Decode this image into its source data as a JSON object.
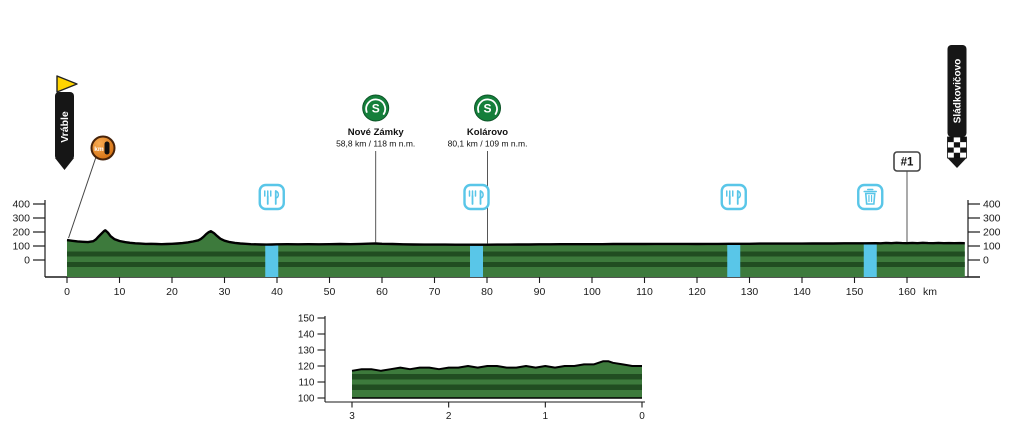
{
  "page": {
    "background": "#ffffff"
  },
  "chart_data": [
    {
      "id": "main_profile",
      "type": "area",
      "title": "",
      "xlabel": "km",
      "ylabel": "",
      "x_ticks": [
        0,
        10,
        20,
        30,
        40,
        50,
        60,
        70,
        80,
        90,
        100,
        110,
        120,
        130,
        140,
        150,
        160
      ],
      "y_ticks": [
        0,
        100,
        200,
        300,
        400
      ],
      "x_range": [
        0,
        171
      ],
      "y_range": [
        0,
        400
      ],
      "grid": false,
      "legend": "none",
      "series": [
        {
          "name": "elevation_m",
          "points": [
            [
              0,
              142
            ],
            [
              1,
              137
            ],
            [
              2,
              133
            ],
            [
              3,
              130
            ],
            [
              4,
              128
            ],
            [
              5,
              134
            ],
            [
              5.5,
              147
            ],
            [
              6,
              167
            ],
            [
              6.5,
              186
            ],
            [
              7,
              205
            ],
            [
              7.3,
              212
            ],
            [
              7.8,
              196
            ],
            [
              8.3,
              170
            ],
            [
              9,
              149
            ],
            [
              10,
              136
            ],
            [
              11,
              128
            ],
            [
              12,
              123
            ],
            [
              13,
              119
            ],
            [
              14,
              117
            ],
            [
              15,
              115
            ],
            [
              16,
              116
            ],
            [
              17,
              114
            ],
            [
              18,
              113
            ],
            [
              19,
              114
            ],
            [
              20,
              116
            ],
            [
              21,
              118
            ],
            [
              22,
              121
            ],
            [
              23,
              126
            ],
            [
              24,
              132
            ],
            [
              25,
              141
            ],
            [
              25.5,
              151
            ],
            [
              26,
              166
            ],
            [
              26.5,
              184
            ],
            [
              27,
              199
            ],
            [
              27.4,
              206
            ],
            [
              28,
              192
            ],
            [
              28.6,
              171
            ],
            [
              29.2,
              152
            ],
            [
              30,
              138
            ],
            [
              31,
              128
            ],
            [
              32,
              122
            ],
            [
              33,
              118
            ],
            [
              34,
              116
            ],
            [
              35,
              113
            ],
            [
              36,
              112
            ],
            [
              37,
              111
            ],
            [
              38,
              110
            ],
            [
              39,
              111
            ],
            [
              40,
              112
            ],
            [
              42,
              113
            ],
            [
              44,
              112
            ],
            [
              46,
              113
            ],
            [
              48,
              112
            ],
            [
              50,
              113
            ],
            [
              52,
              114
            ],
            [
              54,
              113
            ],
            [
              56,
              115
            ],
            [
              58,
              117
            ],
            [
              58.8,
              118
            ],
            [
              60,
              116
            ],
            [
              62,
              114
            ],
            [
              64,
              112
            ],
            [
              66,
              111
            ],
            [
              68,
              110
            ],
            [
              70,
              110
            ],
            [
              72,
              110
            ],
            [
              74,
              109
            ],
            [
              76,
              109
            ],
            [
              78,
              109
            ],
            [
              80.1,
              109
            ],
            [
              82,
              110
            ],
            [
              84,
              110
            ],
            [
              86,
              111
            ],
            [
              88,
              111
            ],
            [
              90,
              112
            ],
            [
              92,
              112
            ],
            [
              94,
              113
            ],
            [
              96,
              113
            ],
            [
              98,
              113
            ],
            [
              100,
              113
            ],
            [
              102,
              113
            ],
            [
              104,
              114
            ],
            [
              106,
              114
            ],
            [
              108,
              114
            ],
            [
              110,
              114
            ],
            [
              112,
              115
            ],
            [
              114,
              115
            ],
            [
              116,
              115
            ],
            [
              118,
              115
            ],
            [
              120,
              114
            ],
            [
              122,
              115
            ],
            [
              124,
              115
            ],
            [
              126,
              116
            ],
            [
              128,
              116
            ],
            [
              130,
              116
            ],
            [
              132,
              117
            ],
            [
              134,
              117
            ],
            [
              136,
              117
            ],
            [
              138,
              117
            ],
            [
              140,
              117
            ],
            [
              142,
              118
            ],
            [
              144,
              118
            ],
            [
              146,
              118
            ],
            [
              148,
              119
            ],
            [
              150,
              119
            ],
            [
              152,
              119
            ],
            [
              154,
              120
            ],
            [
              155,
              119
            ],
            [
              156,
              122
            ],
            [
              157,
              120
            ],
            [
              158,
              123
            ],
            [
              159,
              121
            ],
            [
              160,
              120
            ],
            [
              161,
              122
            ],
            [
              162,
              120
            ],
            [
              163,
              123
            ],
            [
              164,
              121
            ],
            [
              165,
              120
            ],
            [
              166,
              122
            ],
            [
              167,
              120
            ],
            [
              168,
              121
            ],
            [
              169,
              120
            ],
            [
              170,
              121
            ],
            [
              171,
              120
            ]
          ]
        }
      ]
    },
    {
      "id": "finale_inset",
      "type": "area",
      "title": "",
      "xlabel": "",
      "ylabel": "",
      "x_ticks": [
        3,
        2,
        1,
        0
      ],
      "y_ticks": [
        100,
        110,
        120,
        130,
        140,
        150
      ],
      "x_range": [
        3,
        0
      ],
      "y_range": [
        100,
        150
      ],
      "grid": false,
      "legend": "none",
      "series": [
        {
          "name": "elevation_m",
          "points": [
            [
              3,
              117
            ],
            [
              2.9,
              118
            ],
            [
              2.8,
              118
            ],
            [
              2.7,
              117
            ],
            [
              2.6,
              118
            ],
            [
              2.5,
              119
            ],
            [
              2.4,
              118
            ],
            [
              2.3,
              119
            ],
            [
              2.2,
              119
            ],
            [
              2.1,
              118
            ],
            [
              2,
              119
            ],
            [
              1.9,
              119
            ],
            [
              1.8,
              120
            ],
            [
              1.7,
              119
            ],
            [
              1.6,
              120
            ],
            [
              1.5,
              120
            ],
            [
              1.4,
              119
            ],
            [
              1.3,
              119
            ],
            [
              1.2,
              120
            ],
            [
              1.1,
              119
            ],
            [
              1,
              120
            ],
            [
              0.9,
              119
            ],
            [
              0.8,
              120
            ],
            [
              0.7,
              120
            ],
            [
              0.6,
              121
            ],
            [
              0.5,
              121
            ],
            [
              0.4,
              123
            ],
            [
              0.35,
              123
            ],
            [
              0.3,
              122
            ],
            [
              0.2,
              121
            ],
            [
              0.1,
              120
            ],
            [
              0,
              120
            ]
          ]
        }
      ]
    }
  ],
  "markers": {
    "start": {
      "label": "Vráble",
      "km": 0
    },
    "finish": {
      "label": "Sládkovičovo",
      "km": 171
    },
    "km_zero": {
      "label": "km",
      "value": "0"
    },
    "sprints": [
      {
        "name": "Nové Zámky",
        "detail": "58,8 km / 118 m n.m.",
        "km": 58.8
      },
      {
        "name": "Kolárovo",
        "detail": "80,1 km / 109 m n.m.",
        "km": 80.1
      }
    ],
    "feed_zones": [
      {
        "km": 39
      },
      {
        "km": 78
      },
      {
        "km": 127
      }
    ],
    "waste_zone": {
      "km": 153
    },
    "stage_badge": {
      "text": "#1",
      "km": 160
    },
    "x_axis_unit": "km"
  },
  "colors": {
    "profile_fill": "#3d7a3c",
    "profile_stripe": "#214d21",
    "profile_outline": "#000000",
    "zone_band": "#59c6e8",
    "zone_icon": "#59c6e8",
    "sprint_green": "#157f3b",
    "km0_orange": "#e07f1a",
    "banner_black": "#161616",
    "flag_yellow": "#ffd400",
    "axis": "#1a1a1a",
    "connector": "#444444"
  }
}
